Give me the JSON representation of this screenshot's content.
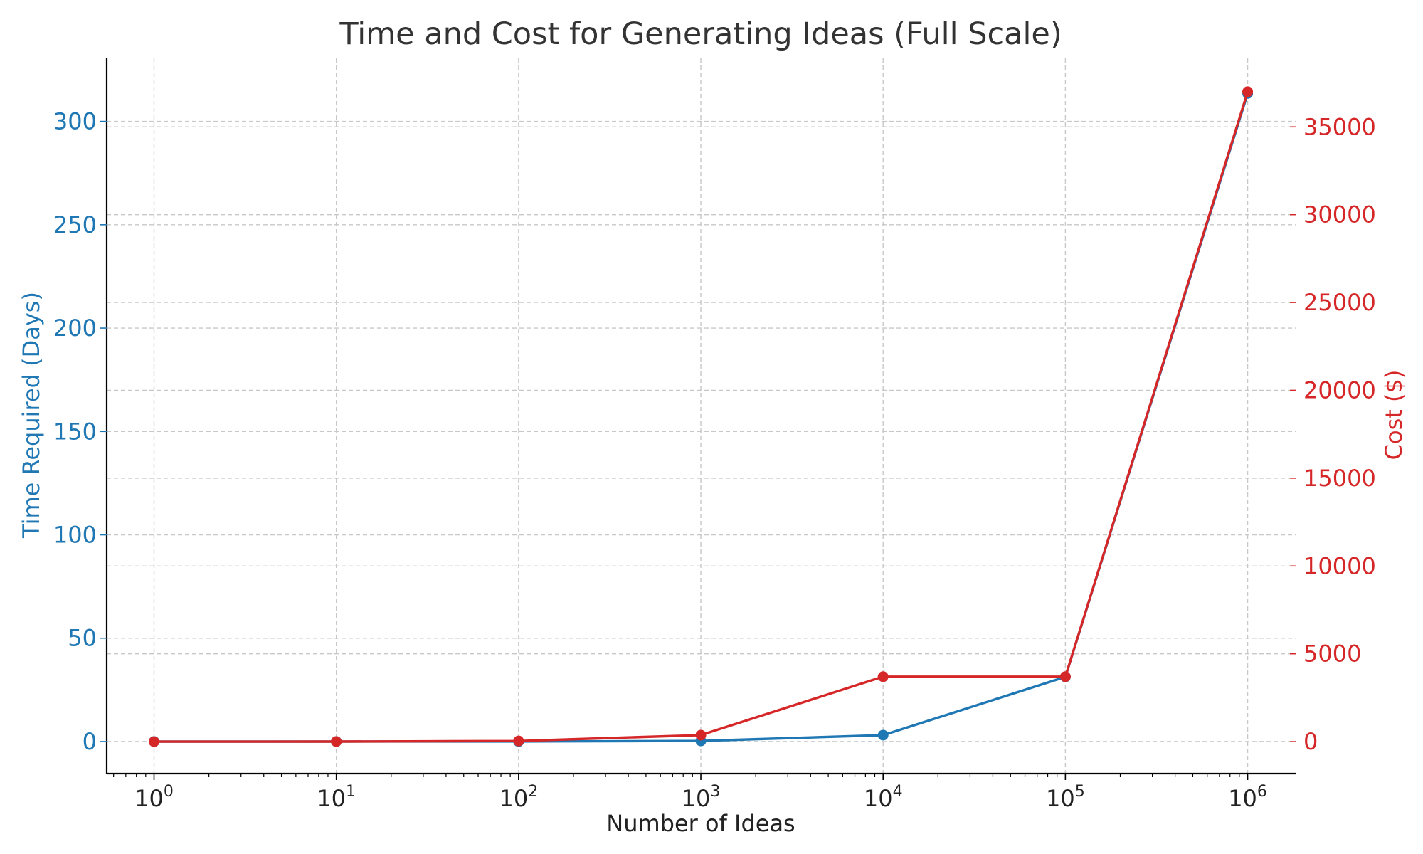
{
  "chart_data": {
    "type": "line",
    "title": "Time and Cost for Generating Ideas (Full Scale)",
    "xlabel": "Number of Ideas",
    "x_scale": "log",
    "x": [
      1,
      10,
      100,
      1000,
      10000,
      100000,
      1000000
    ],
    "x_tick_labels": [
      {
        "base": "10",
        "exp": "0"
      },
      {
        "base": "10",
        "exp": "1"
      },
      {
        "base": "10",
        "exp": "2"
      },
      {
        "base": "10",
        "exp": "3"
      },
      {
        "base": "10",
        "exp": "4"
      },
      {
        "base": "10",
        "exp": "5"
      },
      {
        "base": "10",
        "exp": "6"
      }
    ],
    "xlim": [
      0.55,
      1850000
    ],
    "y_left": {
      "label": "Time Required (Days)",
      "color": "#1f77b4",
      "ticks": [
        0,
        50,
        100,
        150,
        200,
        250,
        300
      ],
      "ylim": [
        -15.5,
        330.5
      ]
    },
    "y_right": {
      "label": "Cost ($)",
      "color": "#d62728",
      "ticks": [
        0,
        5000,
        10000,
        15000,
        20000,
        25000,
        30000,
        35000
      ],
      "ylim": [
        -1820,
        38900
      ]
    },
    "series": [
      {
        "axis": "left",
        "color": "#1f77b4",
        "values": [
          0.0003,
          0.003,
          0.03,
          0.3,
          3.1,
          31.3,
          313.5
        ]
      },
      {
        "axis": "right",
        "color": "#d62728",
        "values": [
          0.37,
          3.7,
          37,
          370,
          3700,
          3700,
          37000
        ]
      }
    ],
    "grid": true
  }
}
